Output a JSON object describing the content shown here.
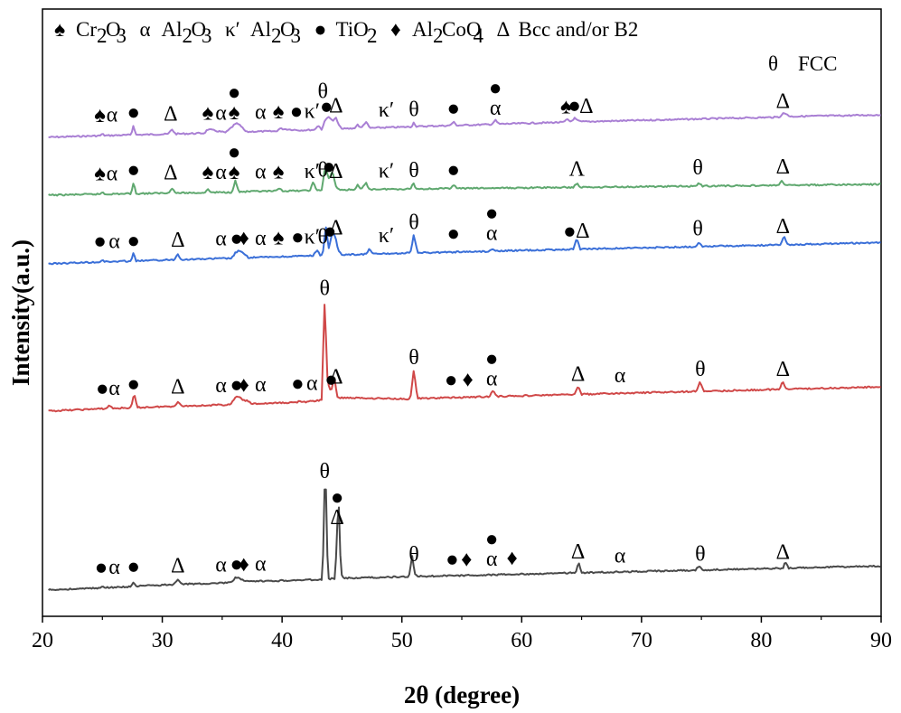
{
  "chart_data": {
    "type": "line",
    "title": "",
    "xlabel": "2θ (degree)",
    "ylabel": "Intensity(a.u.)",
    "xlim": [
      20,
      90
    ],
    "xticks": [
      "20",
      "30",
      "40",
      "50",
      "60",
      "70",
      "80",
      "90"
    ],
    "yticks": [],
    "grid": false,
    "legend": {
      "placement": "top",
      "line1": [
        {
          "symbol": "♠",
          "label": "Cr",
          "sub1": "2",
          "mid": "O",
          "sub2": "3"
        },
        {
          "symbol": "α",
          "label": "Al",
          "sub1": "2",
          "mid": "O",
          "sub2": "3"
        },
        {
          "symbol": "κ′",
          "label": "Al",
          "sub1": "2",
          "mid": "O",
          "sub2": "3"
        },
        {
          "symbol": "●",
          "label": "TiO",
          "sub1": "2",
          "mid": "",
          "sub2": ""
        },
        {
          "symbol": "♦",
          "label": "Al",
          "sub1": "2",
          "mid": "CoO",
          "sub2": "4"
        },
        {
          "symbol": "Δ",
          "label": "Bcc and/or B2",
          "sub1": "",
          "mid": "",
          "sub2": ""
        }
      ],
      "line2": {
        "symbol": "θ",
        "label": "FCC"
      }
    },
    "series": [
      {
        "color": "#a97fd4",
        "x": [
          20.5,
          24.8,
          25.0,
          25.2,
          27.4,
          27.6,
          27.8,
          30.5,
          30.8,
          31.1,
          33.5,
          33.8,
          35.3,
          36.0,
          36.3,
          36.6,
          37.0,
          37.5,
          39.5,
          39.8,
          41.5,
          42.7,
          43.0,
          43.3,
          43.6,
          43.9,
          44.2,
          44.5,
          44.8,
          45.1,
          46.0,
          46.3,
          46.6,
          47.0,
          47.3,
          50.8,
          51.0,
          51.2,
          54.0,
          54.3,
          54.6,
          57.5,
          57.8,
          58.1,
          63.5,
          63.8,
          64.1,
          64.4,
          64.7,
          65.0,
          81.5,
          81.8,
          82.1,
          82.4,
          90
        ],
        "y": [
          0.0,
          0.03,
          0.12,
          0.03,
          0.04,
          0.55,
          0.04,
          0.05,
          0.3,
          0.05,
          0.06,
          0.25,
          0.07,
          0.45,
          0.52,
          0.35,
          0.08,
          0.1,
          0.09,
          0.22,
          0.12,
          0.13,
          0.35,
          0.15,
          0.6,
          0.8,
          0.55,
          0.7,
          0.25,
          0.15,
          0.16,
          0.35,
          0.16,
          0.5,
          0.17,
          0.19,
          0.42,
          0.2,
          0.22,
          0.4,
          0.22,
          0.24,
          0.45,
          0.25,
          0.28,
          0.42,
          0.3,
          0.48,
          0.33,
          0.29,
          0.34,
          0.52,
          0.5,
          0.36,
          0.36
        ]
      },
      {
        "color": "#5fa86f",
        "x": [
          20.5,
          24.8,
          25.0,
          25.2,
          27.4,
          27.6,
          27.8,
          30.5,
          30.8,
          31.1,
          33.5,
          33.8,
          34.1,
          35.8,
          36.1,
          36.4,
          37.0,
          39.5,
          39.8,
          40.1,
          42.3,
          42.6,
          42.9,
          43.3,
          43.6,
          43.9,
          44.2,
          44.5,
          44.8,
          46.0,
          46.3,
          46.6,
          47.0,
          47.3,
          50.7,
          50.95,
          51.2,
          54.0,
          54.3,
          54.6,
          64.3,
          64.6,
          64.9,
          74.5,
          74.8,
          75.1,
          81.4,
          81.7,
          82.0,
          90
        ],
        "y": [
          0.0,
          0.02,
          0.12,
          0.02,
          0.03,
          0.55,
          0.03,
          0.04,
          0.28,
          0.04,
          0.04,
          0.18,
          0.05,
          0.05,
          0.55,
          0.06,
          0.07,
          0.08,
          0.2,
          0.08,
          0.09,
          0.45,
          0.1,
          0.1,
          1.15,
          0.6,
          0.95,
          0.25,
          0.11,
          0.11,
          0.3,
          0.11,
          0.4,
          0.12,
          0.12,
          0.38,
          0.12,
          0.12,
          0.3,
          0.12,
          0.12,
          0.3,
          0.12,
          0.12,
          0.25,
          0.12,
          0.12,
          0.3,
          0.12,
          0.12
        ]
      },
      {
        "color": "#3a6fd8",
        "x": [
          20.5,
          24.8,
          25.0,
          25.2,
          27.4,
          27.6,
          27.8,
          31.0,
          31.3,
          31.6,
          35.8,
          36.1,
          36.4,
          36.8,
          37.2,
          42.6,
          42.9,
          43.2,
          43.4,
          43.65,
          43.9,
          44.2,
          44.45,
          44.7,
          45.0,
          47.0,
          47.3,
          47.6,
          50.7,
          51.0,
          51.3,
          57.3,
          57.6,
          57.9,
          64.3,
          64.6,
          64.9,
          74.5,
          74.8,
          75.1,
          81.6,
          81.9,
          82.2,
          90
        ],
        "y": [
          0.0,
          0.03,
          0.15,
          0.03,
          0.04,
          0.4,
          0.04,
          0.06,
          0.3,
          0.06,
          0.07,
          0.3,
          0.4,
          0.25,
          0.08,
          0.1,
          0.35,
          0.11,
          0.2,
          1.4,
          0.4,
          1.1,
          0.9,
          0.3,
          0.12,
          0.12,
          0.35,
          0.12,
          0.13,
          0.95,
          0.13,
          0.13,
          0.25,
          0.14,
          0.14,
          0.6,
          0.14,
          0.14,
          0.35,
          0.14,
          0.14,
          0.55,
          0.14,
          0.14
        ]
      },
      {
        "color": "#d04848",
        "x": [
          20.5,
          25.3,
          25.6,
          25.9,
          27.4,
          27.65,
          27.9,
          31.0,
          31.3,
          31.6,
          35.7,
          36.0,
          36.3,
          36.7,
          37.1,
          37.5,
          41.2,
          41.5,
          41.8,
          43.3,
          43.55,
          43.8,
          44.1,
          44.35,
          44.6,
          50.7,
          51.0,
          51.3,
          57.3,
          57.6,
          57.9,
          64.4,
          64.7,
          65.0,
          74.6,
          74.9,
          75.2,
          81.5,
          81.8,
          82.1,
          90
        ],
        "y": [
          0.0,
          0.05,
          0.2,
          0.05,
          0.06,
          0.75,
          0.06,
          0.08,
          0.3,
          0.08,
          0.09,
          0.35,
          0.5,
          0.3,
          0.25,
          0.1,
          0.12,
          0.2,
          0.12,
          0.2,
          5.0,
          1.0,
          0.6,
          1.35,
          0.3,
          0.15,
          1.55,
          0.16,
          0.17,
          0.45,
          0.17,
          0.17,
          0.55,
          0.17,
          0.17,
          0.65,
          0.17,
          0.17,
          0.55,
          0.17,
          0.17
        ]
      },
      {
        "color": "#4a4a4a",
        "x": [
          20.5,
          24.8,
          25.0,
          25.2,
          27.4,
          27.6,
          27.8,
          31.0,
          31.3,
          31.6,
          35.8,
          36.1,
          36.4,
          36.8,
          37.2,
          43.3,
          43.45,
          43.6,
          43.75,
          43.9,
          44.4,
          44.55,
          44.7,
          44.85,
          45.0,
          50.6,
          50.85,
          51.1,
          51.3,
          64.5,
          64.75,
          65.0,
          74.5,
          74.8,
          75.1,
          81.8,
          82.0,
          82.3,
          90
        ],
        "y": [
          0.0,
          0.1,
          0.25,
          0.12,
          0.15,
          0.7,
          0.2,
          0.3,
          0.95,
          0.32,
          0.38,
          0.9,
          1.0,
          0.5,
          0.45,
          0.5,
          4.0,
          15.5,
          4.0,
          0.55,
          0.6,
          4.0,
          10.8,
          3.5,
          0.6,
          0.6,
          3.0,
          0.9,
          0.6,
          0.6,
          1.9,
          0.6,
          0.6,
          1.1,
          0.6,
          0.6,
          1.3,
          0.6,
          0.6
        ]
      }
    ],
    "annotations": [
      {
        "series": 0,
        "items": [
          {
            "x": 24.8,
            "t": "♠"
          },
          {
            "x": 25.8,
            "t": "α"
          },
          {
            "x": 27.6,
            "t": "●"
          },
          {
            "x": 30.7,
            "t": "Δ"
          },
          {
            "x": 33.8,
            "t": "♠"
          },
          {
            "x": 34.9,
            "t": "α"
          },
          {
            "x": 36.0,
            "t": "♠"
          },
          {
            "x": 36.0,
            "t": "●"
          },
          {
            "x": 38.2,
            "t": "α"
          },
          {
            "x": 39.7,
            "t": "♠"
          },
          {
            "x": 41.2,
            "t": "●"
          },
          {
            "x": 42.5,
            "t": "κ′"
          },
          {
            "x": 43.7,
            "t": "●"
          },
          {
            "x": 43.4,
            "t": "θ"
          },
          {
            "x": 44.5,
            "t": "Δ"
          },
          {
            "x": 48.7,
            "t": "κ′"
          },
          {
            "x": 51.0,
            "t": "θ"
          },
          {
            "x": 54.3,
            "t": "●"
          },
          {
            "x": 57.8,
            "t": "α"
          },
          {
            "x": 57.8,
            "t": "●"
          },
          {
            "x": 63.7,
            "t": "♠"
          },
          {
            "x": 64.4,
            "t": "●"
          },
          {
            "x": 65.4,
            "t": "Δ"
          },
          {
            "x": 81.8,
            "t": "Δ"
          }
        ]
      },
      {
        "series": 1,
        "items": [
          {
            "x": 24.8,
            "t": "♠"
          },
          {
            "x": 25.8,
            "t": "α"
          },
          {
            "x": 27.6,
            "t": "●"
          },
          {
            "x": 30.7,
            "t": "Δ"
          },
          {
            "x": 33.8,
            "t": "♠"
          },
          {
            "x": 34.9,
            "t": "α"
          },
          {
            "x": 36.0,
            "t": "♠"
          },
          {
            "x": 36.0,
            "t": "●"
          },
          {
            "x": 38.2,
            "t": "α"
          },
          {
            "x": 39.7,
            "t": "♠"
          },
          {
            "x": 42.5,
            "t": "κ′"
          },
          {
            "x": 43.9,
            "t": "●"
          },
          {
            "x": 43.4,
            "t": "θ"
          },
          {
            "x": 44.5,
            "t": "Δ"
          },
          {
            "x": 48.7,
            "t": "κ′"
          },
          {
            "x": 51.0,
            "t": "θ"
          },
          {
            "x": 54.3,
            "t": "●"
          },
          {
            "x": 64.6,
            "t": "Λ"
          },
          {
            "x": 74.7,
            "t": "θ"
          },
          {
            "x": 81.8,
            "t": "Δ"
          }
        ]
      },
      {
        "series": 2,
        "items": [
          {
            "x": 24.8,
            "t": "●"
          },
          {
            "x": 26.0,
            "t": "α"
          },
          {
            "x": 27.6,
            "t": "●"
          },
          {
            "x": 31.3,
            "t": "Δ"
          },
          {
            "x": 34.9,
            "t": "α"
          },
          {
            "x": 36.2,
            "t": "●"
          },
          {
            "x": 36.8,
            "t": "♦"
          },
          {
            "x": 38.2,
            "t": "α"
          },
          {
            "x": 39.7,
            "t": "♠"
          },
          {
            "x": 41.3,
            "t": "●"
          },
          {
            "x": 42.5,
            "t": "κ′"
          },
          {
            "x": 44.0,
            "t": "●"
          },
          {
            "x": 43.4,
            "t": "θ"
          },
          {
            "x": 44.5,
            "t": "Δ"
          },
          {
            "x": 48.7,
            "t": "κ′"
          },
          {
            "x": 51.0,
            "t": "θ"
          },
          {
            "x": 54.3,
            "t": "●"
          },
          {
            "x": 57.5,
            "t": "α"
          },
          {
            "x": 57.5,
            "t": "●"
          },
          {
            "x": 64.0,
            "t": "●"
          },
          {
            "x": 65.1,
            "t": "Δ"
          },
          {
            "x": 74.7,
            "t": "θ"
          },
          {
            "x": 81.8,
            "t": "Δ"
          }
        ]
      },
      {
        "series": 3,
        "items": [
          {
            "x": 25.0,
            "t": "●"
          },
          {
            "x": 26.0,
            "t": "α"
          },
          {
            "x": 27.6,
            "t": "●"
          },
          {
            "x": 31.3,
            "t": "Δ"
          },
          {
            "x": 34.9,
            "t": "α"
          },
          {
            "x": 36.2,
            "t": "●"
          },
          {
            "x": 36.8,
            "t": "♦"
          },
          {
            "x": 38.2,
            "t": "α"
          },
          {
            "x": 41.3,
            "t": "●"
          },
          {
            "x": 42.5,
            "t": "α"
          },
          {
            "x": 44.1,
            "t": "●"
          },
          {
            "x": 43.55,
            "t": "θ"
          },
          {
            "x": 44.5,
            "t": "Δ"
          },
          {
            "x": 51.0,
            "t": "θ"
          },
          {
            "x": 54.1,
            "t": "●"
          },
          {
            "x": 55.5,
            "t": "♦"
          },
          {
            "x": 57.5,
            "t": "α"
          },
          {
            "x": 57.5,
            "t": "●"
          },
          {
            "x": 64.7,
            "t": "Δ"
          },
          {
            "x": 68.2,
            "t": "α"
          },
          {
            "x": 74.9,
            "t": "θ"
          },
          {
            "x": 81.8,
            "t": "Δ"
          }
        ]
      },
      {
        "series": 4,
        "items": [
          {
            "x": 24.9,
            "t": "●"
          },
          {
            "x": 26.0,
            "t": "α"
          },
          {
            "x": 27.6,
            "t": "●"
          },
          {
            "x": 31.3,
            "t": "Δ"
          },
          {
            "x": 34.9,
            "t": "α"
          },
          {
            "x": 36.2,
            "t": "●"
          },
          {
            "x": 36.8,
            "t": "♦"
          },
          {
            "x": 38.2,
            "t": "α"
          },
          {
            "x": 43.55,
            "t": "θ"
          },
          {
            "x": 44.6,
            "t": "Δ"
          },
          {
            "x": 44.6,
            "t": "●"
          },
          {
            "x": 51.0,
            "t": "θ"
          },
          {
            "x": 54.2,
            "t": "●"
          },
          {
            "x": 55.4,
            "t": "♦"
          },
          {
            "x": 57.5,
            "t": "α"
          },
          {
            "x": 57.5,
            "t": "●"
          },
          {
            "x": 59.2,
            "t": "♦"
          },
          {
            "x": 64.7,
            "t": "Δ"
          },
          {
            "x": 68.2,
            "t": "α"
          },
          {
            "x": 74.9,
            "t": "θ"
          },
          {
            "x": 81.8,
            "t": "Δ"
          }
        ]
      }
    ]
  }
}
